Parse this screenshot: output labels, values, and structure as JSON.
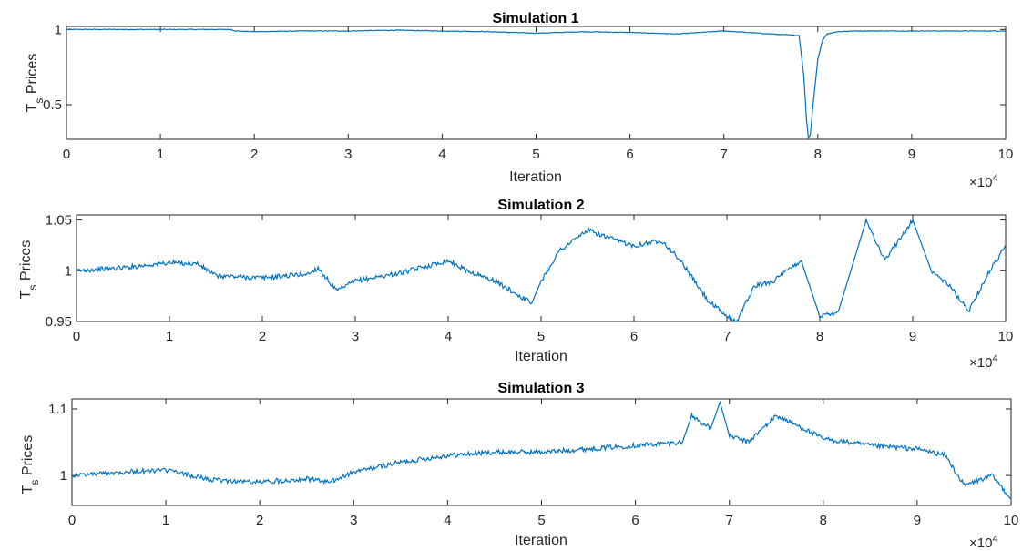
{
  "chart_data": [
    {
      "type": "line",
      "title": "Simulation 1",
      "xlabel": "Iteration",
      "ylabel_main": "T",
      "ylabel_sub": "s",
      "ylabel_rest": " Prices",
      "x_multiplier_base": "×10",
      "x_multiplier_exp": "4",
      "xlim": [
        0,
        10
      ],
      "ylim": [
        0.27,
        1.02
      ],
      "xticks": [
        "0",
        "1",
        "2",
        "3",
        "4",
        "5",
        "6",
        "7",
        "8",
        "9",
        "10"
      ],
      "yticks": [
        {
          "value": 0.5,
          "label": "0.5"
        },
        {
          "value": 1,
          "label": "1"
        }
      ],
      "line_color": "#0072BD",
      "series": [
        {
          "x": [
            0,
            0.5,
            1.0,
            1.5,
            1.75,
            1.8,
            2.0,
            2.5,
            3.0,
            3.5,
            4.0,
            4.5,
            5.0,
            5.5,
            6.0,
            6.5,
            7.0,
            7.5,
            7.8,
            7.85,
            7.88,
            7.9,
            7.92,
            7.95,
            8.0,
            8.05,
            8.1,
            8.2,
            8.4,
            9.0,
            10.0
          ],
          "y": [
            1.0,
            1.0,
            1.0,
            1.0,
            1.0,
            0.99,
            0.985,
            0.99,
            0.99,
            0.995,
            0.99,
            0.985,
            0.975,
            0.985,
            0.98,
            0.97,
            0.99,
            0.97,
            0.96,
            0.7,
            0.4,
            0.28,
            0.3,
            0.5,
            0.8,
            0.93,
            0.97,
            0.985,
            0.99,
            0.99,
            0.99
          ]
        }
      ]
    },
    {
      "type": "line",
      "title": "Simulation 2",
      "xlabel": "Iteration",
      "ylabel_main": "T",
      "ylabel_sub": "s",
      "ylabel_rest": " Prices",
      "x_multiplier_base": "×10",
      "x_multiplier_exp": "4",
      "xlim": [
        0,
        10
      ],
      "ylim": [
        0.95,
        1.055
      ],
      "xticks": [
        "0",
        "1",
        "2",
        "3",
        "4",
        "5",
        "6",
        "7",
        "8",
        "9",
        "10"
      ],
      "yticks": [
        {
          "value": 0.95,
          "label": "0.95"
        },
        {
          "value": 1,
          "label": "1"
        },
        {
          "value": 1.05,
          "label": "1.05"
        }
      ],
      "line_color": "#0072BD",
      "series": [
        {
          "x": [
            0,
            0.5,
            1.0,
            1.3,
            1.5,
            2.0,
            2.5,
            2.6,
            2.8,
            3.0,
            3.5,
            4.0,
            4.2,
            4.5,
            4.9,
            5.0,
            5.2,
            5.5,
            5.8,
            6.0,
            6.3,
            6.5,
            6.8,
            7.0,
            7.1,
            7.3,
            7.5,
            7.8,
            8.0,
            8.2,
            8.5,
            8.7,
            9.0,
            9.2,
            9.4,
            9.6,
            9.8,
            10.0
          ],
          "y": [
            1.0,
            1.003,
            1.008,
            1.007,
            0.995,
            0.993,
            0.997,
            1.003,
            0.98,
            0.99,
            0.998,
            1.01,
            1.0,
            0.99,
            0.968,
            0.99,
            1.02,
            1.04,
            1.03,
            1.025,
            1.03,
            1.01,
            0.97,
            0.955,
            0.95,
            0.985,
            0.99,
            1.01,
            0.955,
            0.96,
            1.05,
            1.01,
            1.05,
            1.0,
            0.985,
            0.96,
            0.995,
            1.025
          ]
        }
      ]
    },
    {
      "type": "line",
      "title": "Simulation 3",
      "xlabel": "Iteration",
      "ylabel_main": "T",
      "ylabel_sub": "s",
      "ylabel_rest": " Prices",
      "x_multiplier_base": "×10",
      "x_multiplier_exp": "4",
      "xlim": [
        0,
        10
      ],
      "ylim": [
        0.955,
        1.115
      ],
      "xticks": [
        "0",
        "1",
        "2",
        "3",
        "4",
        "5",
        "6",
        "7",
        "8",
        "9",
        "10"
      ],
      "yticks": [
        {
          "value": 1,
          "label": "1"
        },
        {
          "value": 1.1,
          "label": "1.1"
        }
      ],
      "line_color": "#0072BD",
      "series": [
        {
          "x": [
            0,
            0.5,
            1.0,
            1.5,
            2.0,
            2.5,
            2.75,
            3.0,
            3.5,
            4.0,
            4.5,
            5.0,
            5.5,
            6.0,
            6.5,
            6.6,
            6.8,
            6.9,
            7.0,
            7.2,
            7.5,
            7.8,
            8.0,
            8.5,
            9.0,
            9.3,
            9.5,
            9.6,
            9.8,
            10.0
          ],
          "y": [
            1.0,
            1.005,
            1.008,
            0.993,
            0.99,
            0.995,
            0.99,
            1.005,
            1.02,
            1.03,
            1.035,
            1.035,
            1.04,
            1.045,
            1.05,
            1.09,
            1.07,
            1.11,
            1.06,
            1.05,
            1.09,
            1.07,
            1.055,
            1.045,
            1.04,
            1.03,
            0.985,
            0.99,
            1.0,
            0.965
          ]
        }
      ]
    }
  ]
}
